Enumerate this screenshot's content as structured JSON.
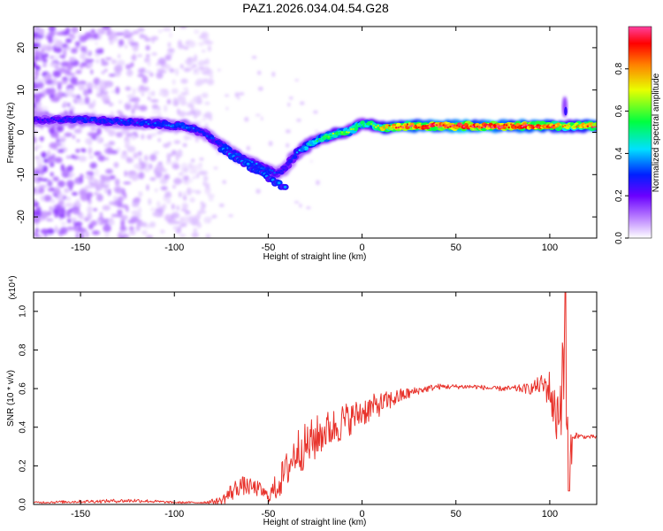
{
  "title": "PAZ1.2026.034.04.54.G28",
  "chart_data": [
    {
      "type": "heatmap",
      "xlabel": "Height of straight line (km)",
      "ylabel": "Frequency (Hz)",
      "xlim": [
        -175,
        125
      ],
      "ylim": [
        -25,
        25
      ],
      "xticks": [
        -150,
        -100,
        -50,
        0,
        50,
        100
      ],
      "yticks": [
        -20,
        -10,
        0,
        10,
        20
      ],
      "colorbar": {
        "label": "Normalized spectral amplitude",
        "range": [
          0.0,
          1.0
        ],
        "ticks": [
          "0.0",
          "0.2",
          "0.4",
          "0.6",
          "0.8"
        ],
        "tick_values": [
          0.0,
          0.2,
          0.4,
          0.6,
          0.8
        ]
      },
      "ridge": {
        "description": "dominant frequency track",
        "x": [
          -172,
          -150,
          -130,
          -110,
          -95,
          -85,
          -75,
          -65,
          -55,
          -45,
          -40,
          -35,
          -25,
          -15,
          -8,
          0,
          5,
          10,
          20,
          40,
          60,
          80,
          100,
          110,
          125
        ],
        "y": [
          3,
          3,
          2.5,
          2,
          1.5,
          0,
          -3,
          -6,
          -8,
          -10,
          -8,
          -5,
          -2,
          -0.5,
          0,
          2,
          2,
          1,
          1.5,
          1.5,
          1.5,
          1.5,
          1.5,
          1.5,
          1.5
        ],
        "amplitude": [
          0.25,
          0.3,
          0.3,
          0.32,
          0.35,
          0.3,
          0.3,
          0.35,
          0.35,
          0.3,
          0.25,
          0.35,
          0.5,
          0.6,
          0.6,
          0.55,
          0.55,
          0.75,
          0.9,
          1.0,
          1.0,
          1.0,
          0.9,
          0.7,
          0.9
        ]
      }
    },
    {
      "type": "line",
      "xlabel": "Height of straight line (km)",
      "ylabel": "SNR (10 * v/v)",
      "multiplier": "(x10⁴)",
      "xlim": [
        -175,
        125
      ],
      "ylim": [
        0.0,
        1.1
      ],
      "xticks": [
        -150,
        -100,
        -50,
        0,
        50,
        100
      ],
      "yticks": [
        "0.0",
        "0.2",
        "0.4",
        "0.6",
        "0.8",
        "1.0"
      ],
      "ytick_values": [
        0.0,
        0.2,
        0.4,
        0.6,
        0.8,
        1.0
      ],
      "color": "#e8332c",
      "series": [
        {
          "name": "SNR",
          "x": [
            -175,
            -150,
            -120,
            -100,
            -85,
            -75,
            -70,
            -65,
            -55,
            -50,
            -45,
            -40,
            -35,
            -30,
            -25,
            -20,
            -15,
            -10,
            -5,
            0,
            5,
            10,
            20,
            30,
            40,
            50,
            60,
            70,
            80,
            90,
            95,
            100,
            103,
            106,
            108,
            110,
            113,
            118,
            125
          ],
          "y": [
            0.01,
            0.015,
            0.02,
            0.01,
            0.01,
            0.02,
            0.06,
            0.1,
            0.08,
            0.04,
            0.1,
            0.18,
            0.28,
            0.3,
            0.34,
            0.38,
            0.4,
            0.43,
            0.45,
            0.48,
            0.5,
            0.52,
            0.56,
            0.59,
            0.61,
            0.61,
            0.61,
            0.6,
            0.6,
            0.6,
            0.62,
            0.6,
            0.45,
            0.55,
            0.75,
            0.2,
            0.36,
            0.35,
            0.35
          ],
          "noise": [
            0.005,
            0.008,
            0.01,
            0.005,
            0.005,
            0.02,
            0.05,
            0.05,
            0.04,
            0.03,
            0.08,
            0.1,
            0.12,
            0.12,
            0.12,
            0.1,
            0.1,
            0.1,
            0.08,
            0.08,
            0.07,
            0.06,
            0.04,
            0.02,
            0.015,
            0.012,
            0.012,
            0.012,
            0.015,
            0.03,
            0.05,
            0.1,
            0.15,
            0.2,
            0.3,
            0.15,
            0.02,
            0.01,
            0.01
          ]
        }
      ]
    }
  ]
}
